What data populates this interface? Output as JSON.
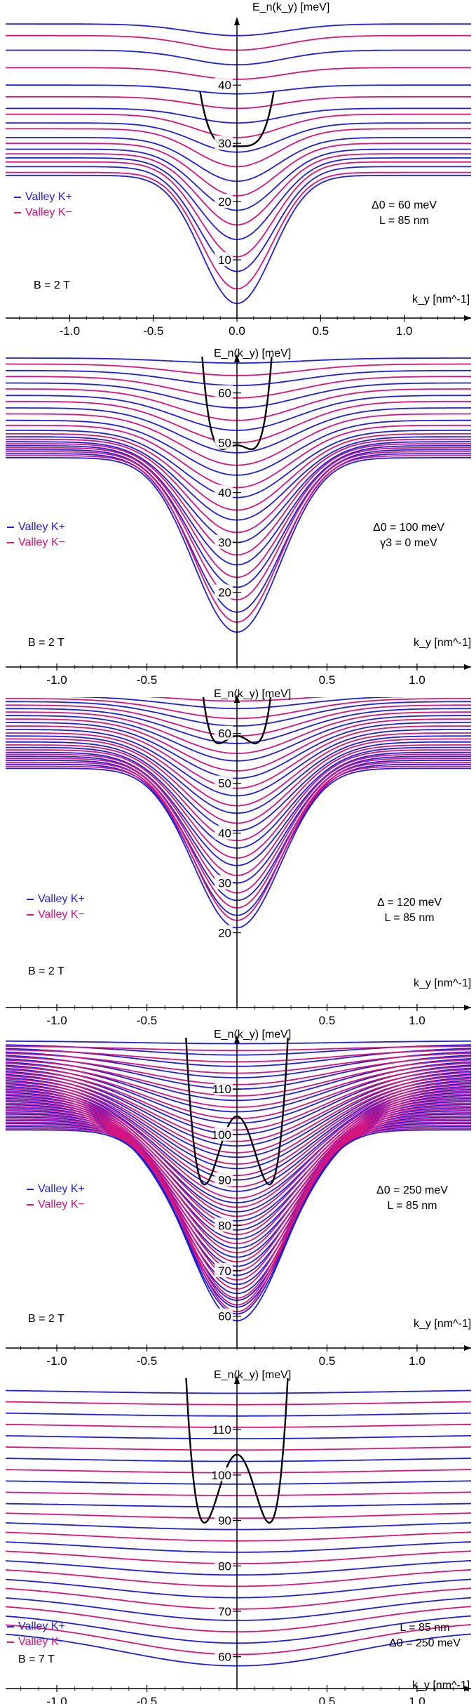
{
  "colors": {
    "valley_plus": "#1f1fdc",
    "valley_minus": "#d6157f",
    "parabola": "#000000",
    "axis": "#000000"
  },
  "chart_data": [
    {
      "type": "line",
      "ylabel": "E_n(k_y) [meV]",
      "xlabel": "k_y [nm^-1]",
      "xlim": [
        -1.4,
        1.4
      ],
      "ylim": [
        0,
        51
      ],
      "x_ticks": [
        "-1.0",
        "-0.5",
        "0.0",
        "0.5",
        "1.0"
      ],
      "y_ticks": [
        "10",
        "20",
        "30",
        "40"
      ],
      "legend": [
        "Valley K+",
        "Valley K−"
      ],
      "params": [
        "Δ0 = 60 meV",
        "L = 85 nm"
      ],
      "field": "B = 2 T",
      "series": [
        {
          "name": "Valley K+",
          "minima": [
            2.5,
            8,
            13.5,
            18.5,
            23.5,
            28.5,
            33.5,
            38.5,
            43.5,
            48.5
          ],
          "plateaus": [
            24.5,
            26,
            27.5,
            29,
            31,
            33.5,
            36,
            40,
            46,
            50.5
          ],
          "width": 0.3
        },
        {
          "name": "Valley K−",
          "minima": [
            5,
            10.5,
            16,
            21,
            26,
            31,
            36,
            41,
            46
          ],
          "plateaus": [
            25,
            26.8,
            28.2,
            30,
            32.5,
            35,
            38,
            43,
            48.5
          ],
          "width": 0.3
        }
      ],
      "parabola": {
        "e0": 29.5,
        "dip": 0.5,
        "k0": 0.0,
        "reach": 0.22,
        "ymax": 51
      }
    },
    {
      "type": "line",
      "ylabel": "E_n(k_y) [meV]",
      "xlabel": "k_y [nm^-1]",
      "xlim": [
        -1.3,
        1.3
      ],
      "ylim": [
        5,
        67
      ],
      "x_ticks": [
        "-1.0",
        "-0.5",
        "0.5",
        "1.0"
      ],
      "y_ticks": [
        "20",
        "30",
        "40",
        "50",
        "60"
      ],
      "legend": [
        "Valley K+",
        "Valley K−"
      ],
      "params": [
        "Δ0 = 100 meV",
        "γ3 = 0 meV"
      ],
      "field": "B = 2 T",
      "series": [
        {
          "name": "Valley K+",
          "minima": [
            12,
            16,
            21,
            25.5,
            30,
            34.5,
            39,
            43.5,
            48,
            52.5,
            57,
            61.5,
            66
          ],
          "plateaus": [
            47,
            47.8,
            48.6,
            49.4,
            50.2,
            51.2,
            52.5,
            54.5,
            57,
            59.5,
            62,
            64.5,
            67
          ],
          "width": 0.34
        },
        {
          "name": "Valley K−",
          "minima": [
            14,
            18.5,
            23,
            27.5,
            32,
            36.5,
            41,
            45.5,
            50,
            54.5,
            59,
            63.5
          ],
          "plateaus": [
            47.4,
            48.2,
            49,
            49.8,
            50.7,
            51.8,
            53.5,
            55.8,
            58.3,
            60.8,
            63.3,
            65.8
          ],
          "width": 0.34
        }
      ],
      "parabola": {
        "e0": 49.5,
        "dip": 0.8,
        "k0": 0.08,
        "reach": 0.2,
        "ymax": 67
      }
    },
    {
      "type": "line",
      "ylabel": "E_n(k_y) [meV]",
      "xlabel": "k_y [nm^-1]",
      "xlim": [
        -1.3,
        1.3
      ],
      "ylim": [
        5,
        67
      ],
      "x_ticks": [
        "-1.0",
        "-0.5",
        "0.5",
        "1.0"
      ],
      "y_ticks": [
        "20",
        "30",
        "40",
        "50",
        "60"
      ],
      "legend": [
        "Valley K+",
        "Valley K−"
      ],
      "params": [
        "Δ = 120 meV",
        "L = 85 nm"
      ],
      "field": "B = 2 T",
      "series": [
        {
          "name": "Valley K+",
          "minima": [
            21,
            23.5,
            26.5,
            30,
            33.5,
            37,
            40.5,
            44,
            47.5,
            51,
            54.5,
            58,
            61.5,
            65
          ],
          "plateaus": [
            53,
            53.8,
            54.6,
            55.4,
            56.2,
            57.2,
            58.3,
            59.5,
            60.8,
            62.2,
            63.6,
            65,
            66.4,
            67.5
          ],
          "width": 0.34
        },
        {
          "name": "Valley K−",
          "minima": [
            22.5,
            25,
            28,
            31.5,
            35,
            38.5,
            42,
            45.5,
            49,
            52.5,
            56,
            59.5,
            63,
            66.5
          ],
          "plateaus": [
            53.4,
            54.2,
            55,
            55.8,
            56.7,
            57.7,
            58.9,
            60.1,
            61.5,
            62.9,
            64.3,
            65.7,
            67,
            68
          ],
          "width": 0.34
        }
      ],
      "parabola": {
        "e0": 59.5,
        "dip": 1.5,
        "k0": 0.1,
        "reach": 0.2,
        "ymax": 67
      }
    },
    {
      "type": "line",
      "ylabel": "E_n(k_y) [meV]",
      "xlabel": "k_y [nm^-1]",
      "xlim": [
        -1.3,
        1.3
      ],
      "ylim": [
        53,
        121
      ],
      "x_ticks": [
        "-1.0",
        "-0.5",
        "0.5",
        "1.0"
      ],
      "y_ticks": [
        "60",
        "70",
        "80",
        "90",
        "100",
        "110"
      ],
      "legend": [
        "Valley K+",
        "Valley K−"
      ],
      "params": [
        "Δ0 = 250 meV",
        "L = 85 nm"
      ],
      "field": "B = 2 T",
      "series": [
        {
          "name": "Valley K+",
          "minima": [
            59,
            60.5,
            62,
            63.5,
            65,
            67,
            69,
            71,
            73,
            75,
            77,
            79,
            81,
            83,
            85,
            87.5,
            90,
            92.5,
            95,
            97.5,
            100,
            102.5,
            105,
            107.5,
            110,
            112.5,
            115,
            117.5,
            120
          ],
          "plateaus": [
            101,
            101.7,
            102.4,
            103.1,
            103.8,
            104.5,
            105.2,
            105.9,
            106.6,
            107.3,
            108,
            108.7,
            109.4,
            110.1,
            110.8,
            111.5,
            112.2,
            112.9,
            113.6,
            114.3,
            115,
            115.7,
            116.4,
            117.1,
            117.8,
            118.5,
            119.2,
            119.9,
            120.6
          ],
          "width": 0.38
        },
        {
          "name": "Valley K−",
          "minima": [
            61,
            62.5,
            64,
            66,
            68,
            70,
            72,
            74,
            76,
            78,
            80,
            82,
            84,
            86,
            88.5,
            91,
            93.5,
            96,
            98.5,
            101,
            103.5,
            106,
            108.5,
            111,
            113.5,
            116,
            118.5
          ],
          "plateaus": [
            101.3,
            102,
            102.7,
            103.4,
            104.1,
            104.8,
            105.5,
            106.2,
            106.9,
            107.6,
            108.3,
            109,
            109.7,
            110.4,
            111.1,
            111.8,
            112.5,
            113.2,
            113.9,
            114.6,
            115.3,
            116,
            116.7,
            117.4,
            118.1,
            118.8,
            119.5
          ],
          "width": 0.38
        }
      ],
      "parabola": {
        "e0": 104,
        "dip": 15,
        "k0": 0.18,
        "reach": 0.4,
        "ymax": 121
      }
    },
    {
      "type": "line",
      "ylabel": "E_n(k_y) [meV]",
      "xlabel": "k_y [nm^-1]",
      "xlim": [
        -1.3,
        1.3
      ],
      "ylim": [
        53,
        121
      ],
      "x_ticks": [
        "-1.0",
        "-0.5",
        "0.5",
        "1.0"
      ],
      "y_ticks": [
        "60",
        "70",
        "80",
        "90",
        "100",
        "110"
      ],
      "legend": [
        "Valley K+",
        "Valley K−"
      ],
      "params": [
        "L = 85 nm",
        "Δ0 = 250 meV"
      ],
      "field": "B = 7 T",
      "series": [
        {
          "name": "Valley K+",
          "minima": [
            58,
            63,
            68,
            73,
            78,
            83,
            88,
            93,
            98,
            103,
            108,
            113,
            118
          ],
          "plateaus": [
            66,
            70,
            74,
            78,
            82,
            86,
            90,
            94,
            99,
            104,
            109,
            114,
            119
          ],
          "width": 0.9
        },
        {
          "name": "Valley K−",
          "minima": [
            60.5,
            65.5,
            70.5,
            75.5,
            80.5,
            85.5,
            90.5,
            95.5,
            100.5,
            105.5,
            110.5,
            115.5
          ],
          "plateaus": [
            68,
            72,
            76,
            80,
            84,
            88,
            92,
            96.5,
            101.5,
            106.5,
            111.5,
            116.5
          ],
          "width": 0.9
        }
      ],
      "parabola": {
        "e0": 104.5,
        "dip": 15,
        "k0": 0.18,
        "reach": 0.4,
        "ymax": 121
      }
    }
  ]
}
